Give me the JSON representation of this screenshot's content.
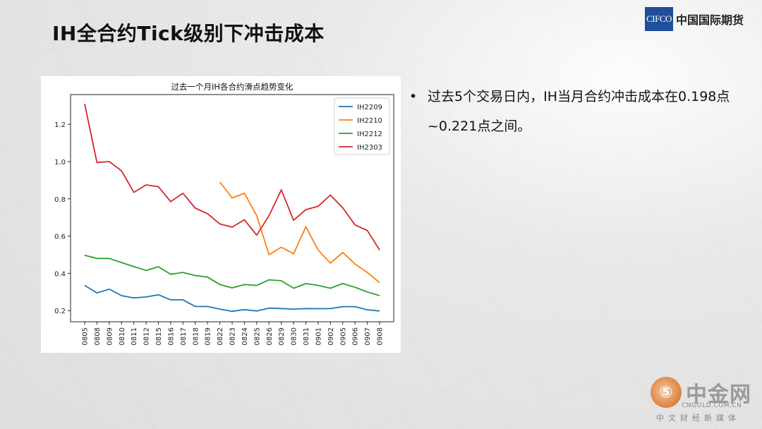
{
  "slide": {
    "title": "IH全合约Tick级别下冲击成本",
    "logo": {
      "box_text": "CIFCO",
      "name": "中国国际期货"
    },
    "bullet": "过去5个交易日内，IH当月合约冲击成本在0.198点~0.221点之间。",
    "watermark": {
      "icon_char": "⑤",
      "name": "中金网",
      "url": "CNGOLD.COM.CN",
      "sub": "中文财经新媒体"
    }
  },
  "chart_data": {
    "type": "line",
    "title": "过去一个月IH各合约滑点趋势变化",
    "xlabel": "",
    "ylabel": "",
    "categories": [
      "0805",
      "0808",
      "0809",
      "0810",
      "0811",
      "0812",
      "0815",
      "0816",
      "0817",
      "0818",
      "0819",
      "0822",
      "0823",
      "0824",
      "0825",
      "0826",
      "0829",
      "0830",
      "0831",
      "0901",
      "0902",
      "0905",
      "0906",
      "0907",
      "0908"
    ],
    "ylim": [
      0.14,
      1.36
    ],
    "yticks": [
      0.2,
      0.4,
      0.6,
      0.8,
      1.0,
      1.2
    ],
    "ytick_labels": [
      "0.2",
      "0.4",
      "0.6",
      "0.8",
      "1.0",
      "1.2"
    ],
    "legend_position": "top-right",
    "series": [
      {
        "name": "IH2209",
        "color": "#1f77b4",
        "values": [
          0.335,
          0.295,
          0.315,
          0.28,
          0.268,
          0.273,
          0.285,
          0.258,
          0.258,
          0.222,
          0.222,
          0.208,
          0.196,
          0.205,
          0.198,
          0.213,
          0.211,
          0.208,
          0.211,
          0.21,
          0.211,
          0.221,
          0.221,
          0.204,
          0.198
        ]
      },
      {
        "name": "IH2210",
        "color": "#ff7f0e",
        "values": [
          null,
          null,
          null,
          null,
          null,
          null,
          null,
          null,
          null,
          null,
          null,
          0.89,
          0.805,
          0.83,
          0.71,
          0.5,
          0.54,
          0.505,
          0.65,
          0.525,
          0.455,
          0.512,
          0.45,
          0.405,
          0.35
        ]
      },
      {
        "name": "IH2212",
        "color": "#2ca02c",
        "values": [
          0.497,
          0.48,
          0.48,
          0.458,
          0.436,
          0.416,
          0.435,
          0.395,
          0.405,
          0.388,
          0.38,
          0.34,
          0.322,
          0.34,
          0.335,
          0.365,
          0.36,
          0.32,
          0.345,
          0.335,
          0.32,
          0.345,
          0.325,
          0.3,
          0.28
        ]
      },
      {
        "name": "IH2303",
        "color": "#d62728",
        "values": [
          1.31,
          0.995,
          1.0,
          0.95,
          0.835,
          0.875,
          0.865,
          0.785,
          0.83,
          0.75,
          0.72,
          0.665,
          0.648,
          0.688,
          0.605,
          0.71,
          0.848,
          0.685,
          0.742,
          0.76,
          0.82,
          0.752,
          0.66,
          0.63,
          0.525
        ]
      }
    ]
  }
}
